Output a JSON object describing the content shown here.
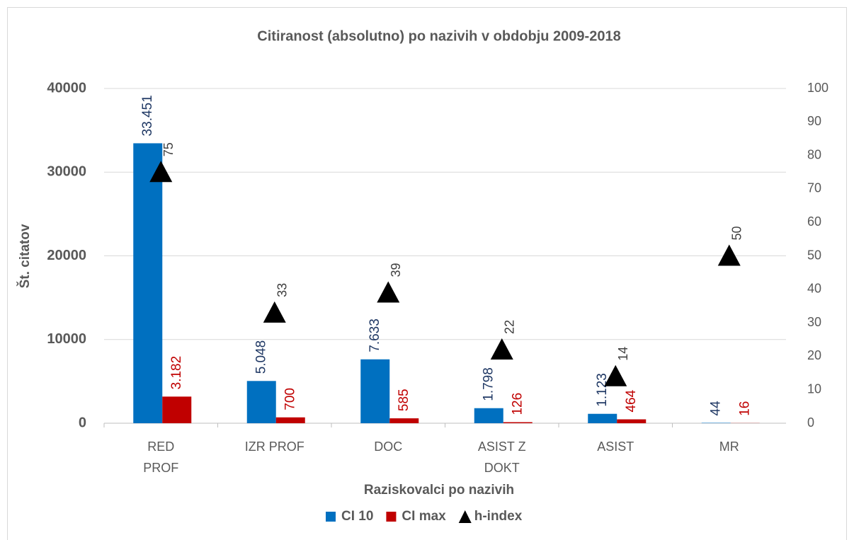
{
  "chart_data": {
    "type": "bar",
    "title": "Citiranost (absolutno) po nazivih v obdobju 2009-2018",
    "x_label": "Raziskovalci po nazivih",
    "y_label": "Št. citatov",
    "categories": [
      [
        "RED",
        "PROF"
      ],
      [
        "IZR PROF"
      ],
      [
        "DOC"
      ],
      [
        "ASIST Z",
        "DOKT"
      ],
      [
        "ASIST"
      ],
      [
        "MR"
      ]
    ],
    "series": [
      {
        "name": "CI 10",
        "color": "#0070c0",
        "label_color": "#1f3864",
        "values": [
          33451,
          5048,
          7633,
          1798,
          1123,
          44
        ],
        "value_labels": [
          "33.451",
          "5.048",
          "7.633",
          "1.798",
          "1.123",
          "44"
        ]
      },
      {
        "name": "CI max",
        "color": "#c00000",
        "label_color": "#c00000",
        "values": [
          3182,
          700,
          585,
          126,
          464,
          16
        ],
        "value_labels": [
          "3.182",
          "700",
          "585",
          "126",
          "464",
          "16"
        ]
      },
      {
        "name": "h-index",
        "color": "#000000",
        "label_color": "#404040",
        "marker": "triangle",
        "axis": "y2",
        "values": [
          75,
          33,
          39,
          22,
          14,
          50
        ]
      }
    ],
    "ylim": [
      0,
      40000
    ],
    "yticks": [
      0,
      10000,
      20000,
      30000,
      40000
    ],
    "y2lim": [
      0,
      100
    ],
    "y2ticks": [
      0,
      10,
      20,
      30,
      40,
      50,
      60,
      70,
      80,
      90,
      100
    ],
    "grid": true,
    "legend": "bottom"
  }
}
